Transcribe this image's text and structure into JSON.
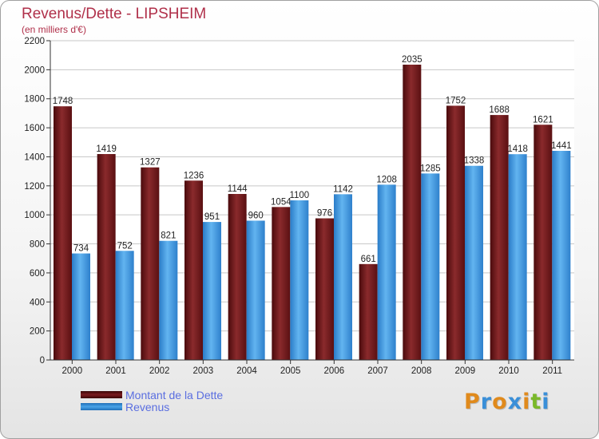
{
  "chart_data": {
    "type": "bar",
    "title": "Revenus/Dette - LIPSHEIM",
    "subtitle": "(en milliers d'€)",
    "categories": [
      "2000",
      "2001",
      "2002",
      "2003",
      "2004",
      "2005",
      "2006",
      "2007",
      "2008",
      "2009",
      "2010",
      "2011"
    ],
    "series": [
      {
        "name": "Montant de la Dette",
        "color": "#7a1a1e",
        "values": [
          1748,
          1419,
          1327,
          1236,
          1144,
          1054,
          976,
          661,
          2035,
          1752,
          1688,
          1621
        ]
      },
      {
        "name": "Revenus",
        "color": "#4aa3e8",
        "values": [
          734,
          752,
          821,
          951,
          960,
          1100,
          1142,
          1208,
          1285,
          1338,
          1418,
          1441
        ]
      }
    ],
    "ylim": [
      0,
      2200
    ],
    "yticks": [
      0,
      200,
      400,
      600,
      800,
      1000,
      1200,
      1400,
      1600,
      1800,
      2000,
      2200
    ],
    "grid": true,
    "legend": "bottom-left"
  },
  "logo": {
    "letters": [
      {
        "char": "P",
        "color": "#e08a1c"
      },
      {
        "char": "r",
        "color": "#3a8fd8"
      },
      {
        "char": "o",
        "color": "#e08a1c"
      },
      {
        "char": "x",
        "color": "#3a8fd8"
      },
      {
        "char": "i",
        "color": "#e08a1c"
      },
      {
        "char": "t",
        "color": "#7ab82a"
      },
      {
        "char": "i",
        "color": "#3a8fd8"
      }
    ]
  }
}
